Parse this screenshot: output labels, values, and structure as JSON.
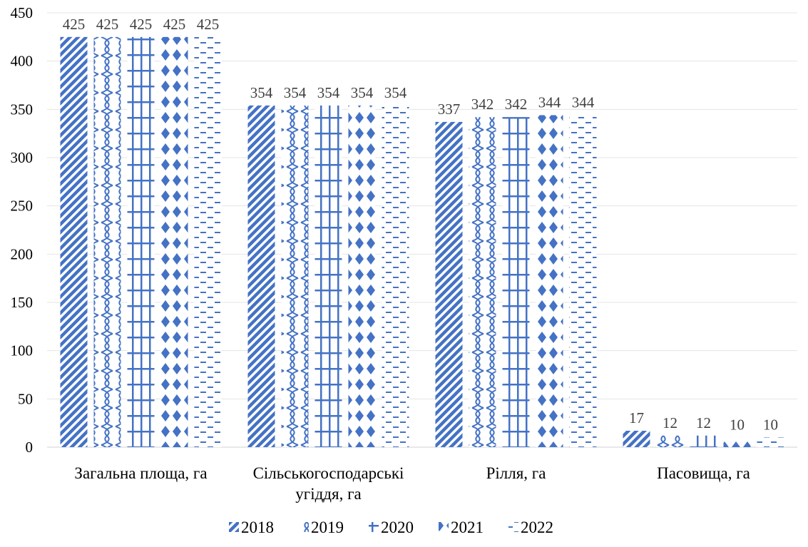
{
  "chart_data": {
    "type": "bar",
    "title": "",
    "xlabel": "",
    "ylabel": "",
    "ylim": [
      0,
      450
    ],
    "yticks": [
      0,
      50,
      100,
      150,
      200,
      250,
      300,
      350,
      400,
      450
    ],
    "grid": true,
    "legend_position": "bottom",
    "bar_color": "#4472C4",
    "categories": [
      [
        "Загальна площа, га"
      ],
      [
        "Сільськогосподарські",
        "угіддя, га"
      ],
      [
        "Рілля, га"
      ],
      [
        "Пасовища, га"
      ]
    ],
    "series": [
      {
        "name": "2018",
        "pattern": "diagonal-stripes",
        "values": [
          425,
          354,
          337,
          17
        ]
      },
      {
        "name": "2019",
        "pattern": "wave",
        "values": [
          425,
          354,
          342,
          12
        ]
      },
      {
        "name": "2020",
        "pattern": "grid",
        "values": [
          425,
          354,
          342,
          12
        ]
      },
      {
        "name": "2021",
        "pattern": "diamonds",
        "values": [
          425,
          354,
          344,
          10
        ]
      },
      {
        "name": "2022",
        "pattern": "dashes",
        "values": [
          425,
          354,
          344,
          10
        ]
      }
    ]
  }
}
